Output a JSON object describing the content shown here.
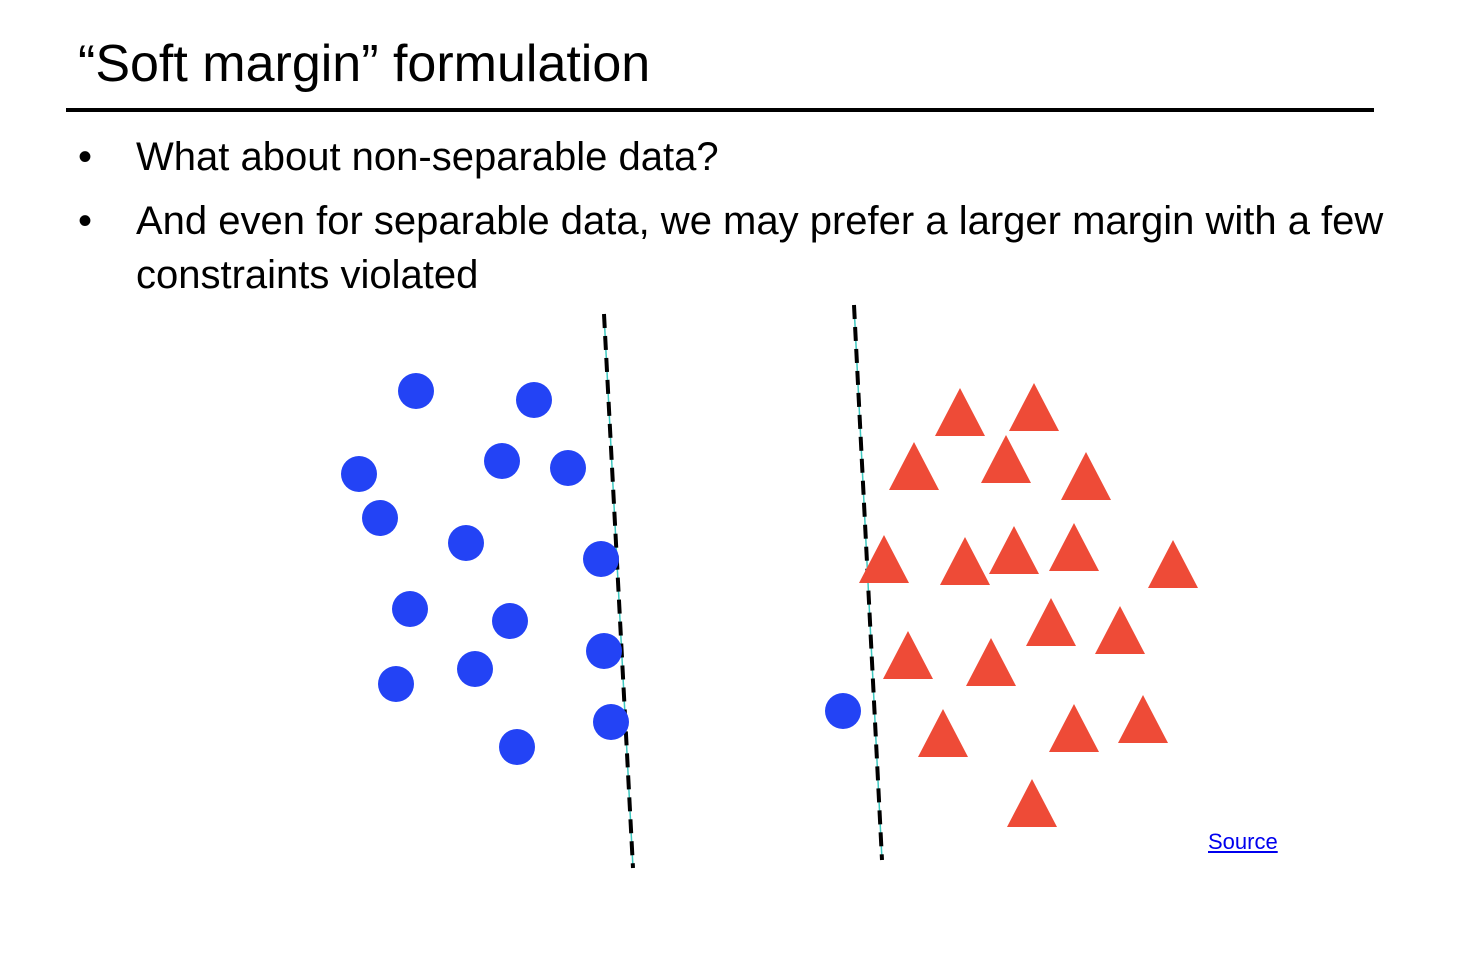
{
  "slide": {
    "title": "“Soft margin” formulation",
    "bullets": [
      "What about non-separable data?",
      "And even for separable data, we may prefer a larger margin with a few constraints violated"
    ],
    "bullet_symbol": "•",
    "source_link": "Source"
  },
  "diagram": {
    "colors": {
      "circle": "#2343f5",
      "triangle": "#ee4b37",
      "boundary_dash": "#000000",
      "boundary_line": "#3ec8c0"
    },
    "icons": {
      "class_a": "blue-circle",
      "class_b": "red-triangle"
    }
  }
}
